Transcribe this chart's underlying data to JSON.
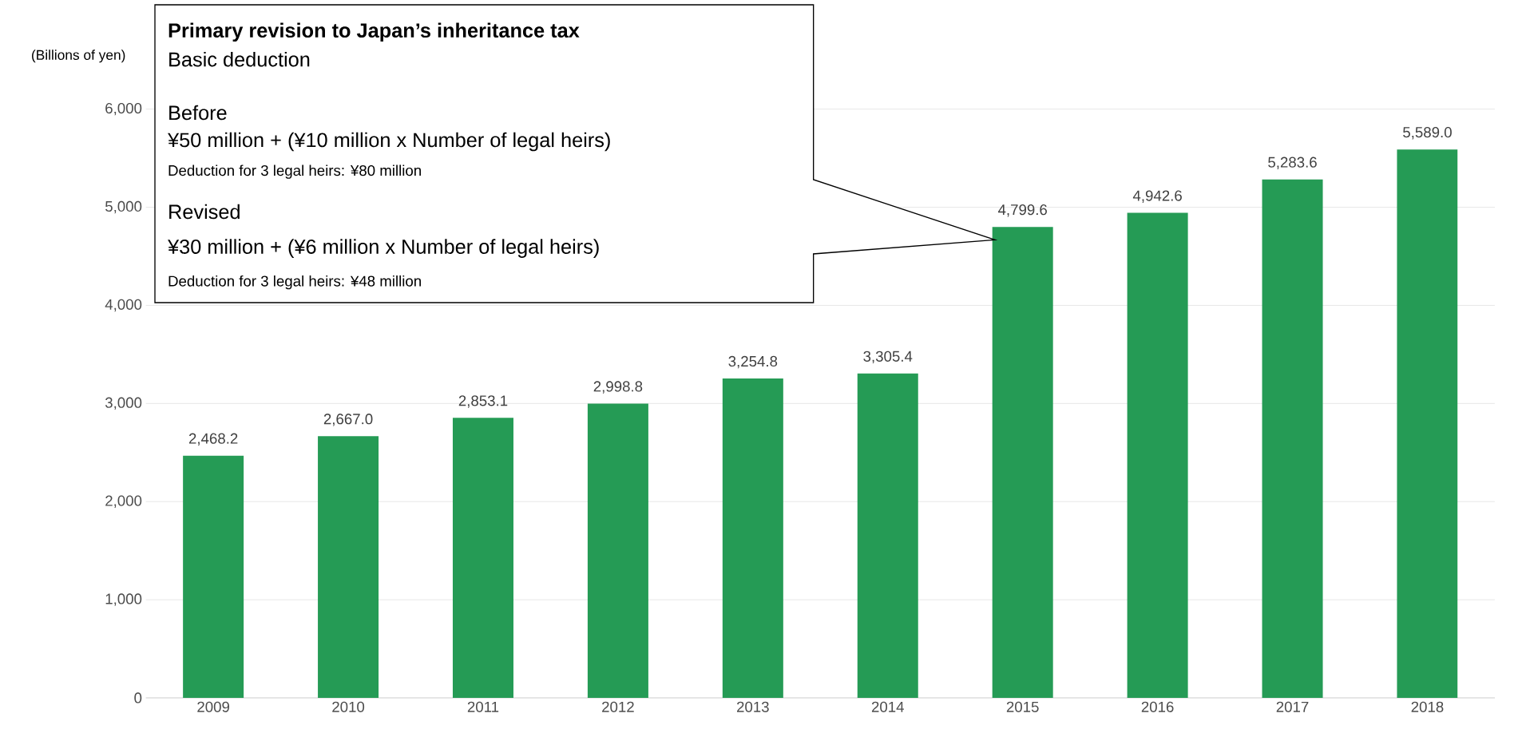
{
  "chart_data": {
    "type": "bar",
    "ylabel": "(Billions of yen)",
    "categories": [
      "2009",
      "2010",
      "2011",
      "2012",
      "2013",
      "2014",
      "2015",
      "2016",
      "2017",
      "2018"
    ],
    "values": [
      2468.2,
      2667.0,
      2853.1,
      2998.8,
      3254.8,
      3305.4,
      4799.6,
      4942.6,
      5283.6,
      5589.0
    ],
    "color": "#259b55",
    "ylim": [
      0,
      6000
    ],
    "yticks": [
      0,
      {
        "value": 1000,
        "label": "1,000"
      },
      {
        "value": 2000,
        "label": "2,000"
      },
      {
        "value": 3000,
        "label": "3,000"
      },
      {
        "value": 4000,
        "label": "4,000"
      },
      {
        "value": 5000,
        "label": "5,000"
      },
      {
        "value": 6000,
        "label": "6,000"
      }
    ],
    "value_labels": [
      "2,468.2",
      "2,667.0",
      "2,853.1",
      "2,998.8",
      "3,254.8",
      "3,305.4",
      "4,799.6",
      "4,942.6",
      "5,283.6",
      "5,589.0"
    ],
    "grid": "y",
    "annotations": [
      "Primary revision to Japan’s inheritance tax",
      "Basic deduction",
      "Before",
      "¥50 million + (¥10 million x Number of legal heirs)",
      "Deduction for 3 legal heirs: ¥80 million",
      "Revised",
      "¥30 million + (¥6 million x Number of legal heirs)",
      "Deduction for 3 legal heirs: ¥48 million"
    ]
  }
}
